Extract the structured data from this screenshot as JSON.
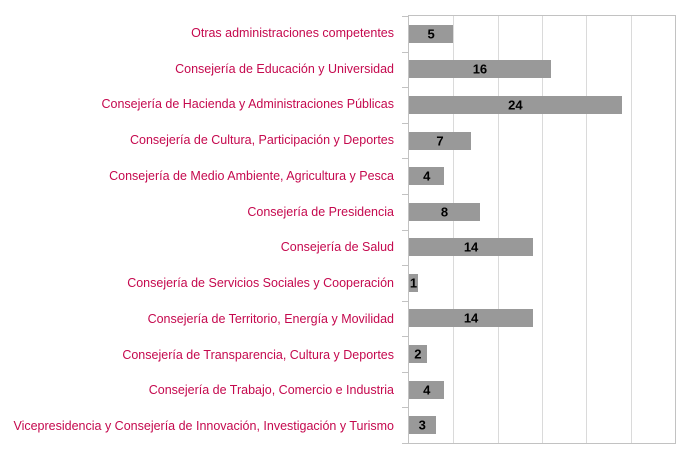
{
  "chart_data": {
    "type": "bar",
    "orientation": "horizontal",
    "title": "",
    "xlabel": "",
    "ylabel": "",
    "categories": [
      "Otras administraciones competentes",
      "Consejería de Educación y  Universidad",
      "Consejería de Hacienda y Administraciones Públicas",
      "Consejería de Cultura, Participación y Deportes",
      "Consejería de Medio Ambiente, Agricultura y Pesca",
      "Consejería de Presidencia",
      "Consejería de Salud",
      "Consejería de Servicios Sociales y Cooperación",
      "Consejería de Territorio, Energía y Movilidad",
      "Consejería de Transparencia, Cultura y Deportes",
      "Consejería de Trabajo, Comercio e Industria",
      "Vicepresidencia y Consejería de Innovación, Investigación y Turismo"
    ],
    "values": [
      5,
      16,
      24,
      7,
      4,
      8,
      14,
      1,
      14,
      2,
      4,
      3
    ],
    "xlim": [
      0,
      30
    ],
    "gridline_interval": 5,
    "grid": true,
    "legend": false,
    "value_labels_shown": true,
    "colors": {
      "bar": "#999999",
      "category_label": "#C5094E",
      "value_label": "#000000",
      "gridline": "#DADADA",
      "axis": "#C2C2C2",
      "background": "#FFFFFF"
    }
  }
}
